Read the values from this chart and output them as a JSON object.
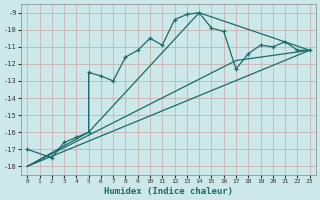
{
  "xlabel": "Humidex (Indice chaleur)",
  "bg_color": "#cde8e8",
  "line_color": "#1a6b6b",
  "grid_color": "#b8d8d8",
  "xlim": [
    -0.5,
    23.5
  ],
  "ylim": [
    -18.5,
    -8.5
  ],
  "xticks": [
    0,
    1,
    2,
    3,
    4,
    5,
    6,
    7,
    8,
    9,
    10,
    11,
    12,
    13,
    14,
    15,
    16,
    17,
    18,
    19,
    20,
    21,
    22,
    23
  ],
  "yticks": [
    -18,
    -17,
    -16,
    -15,
    -14,
    -13,
    -12,
    -11,
    -10,
    -9
  ],
  "line1_x": [
    0,
    2,
    3,
    4,
    5,
    5,
    6,
    7,
    8,
    9,
    10,
    11,
    12,
    13,
    14,
    15,
    16,
    17,
    18,
    19,
    20,
    21,
    22,
    23
  ],
  "line1_y": [
    -17.0,
    -17.5,
    -16.6,
    -16.3,
    -16.0,
    -12.5,
    -12.7,
    -13.0,
    -11.6,
    -11.2,
    -10.5,
    -10.9,
    -9.4,
    -9.1,
    -9.0,
    -9.9,
    -10.1,
    -12.3,
    -11.4,
    -10.9,
    -11.0,
    -10.7,
    -11.2,
    -11.2
  ],
  "line2_x": [
    0,
    5,
    14,
    23
  ],
  "line2_y": [
    -18.0,
    -16.0,
    -9.0,
    -11.2
  ],
  "line3_x": [
    0,
    23
  ],
  "line3_y": [
    -18.0,
    -11.2
  ],
  "line4_x": [
    0,
    17,
    23
  ],
  "line4_y": [
    -18.0,
    -11.8,
    -11.2
  ]
}
